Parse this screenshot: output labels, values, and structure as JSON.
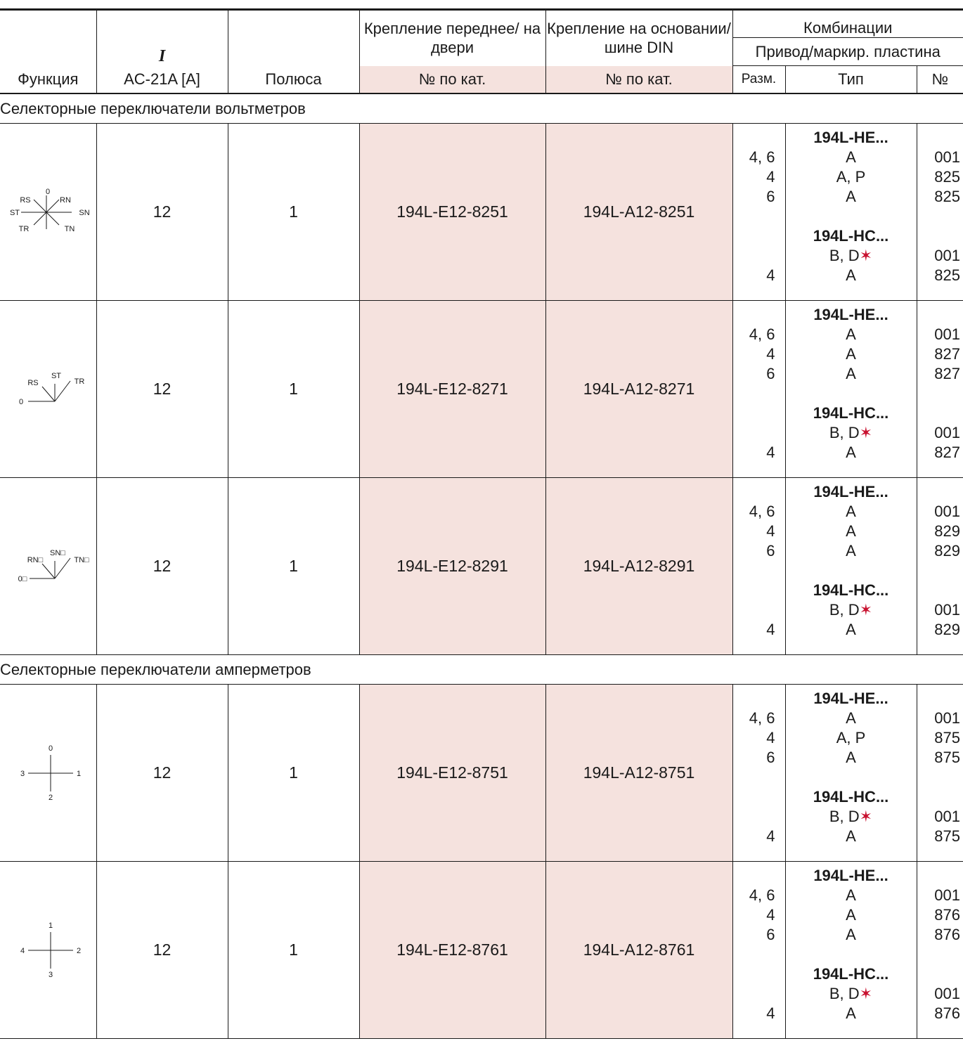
{
  "header": {
    "function": "Функция",
    "current_symbol": "I",
    "current": "AC-21A [A]",
    "poles": "Полюса",
    "front_mount": "Крепление переднее/ на двери",
    "base_mount": "Крепление на основании/шине DIN",
    "combinations": "Комбинации",
    "drive_plate": "Привод/маркир. пластина",
    "cat_no_front": "№ по кат.",
    "cat_no_base": "№ по кат.",
    "size": "Разм.",
    "type": "Тип",
    "num": "№"
  },
  "sections": [
    {
      "title": "Селекторные переключатели вольтметров",
      "rows": [
        {
          "diagram_labels": [
            "RS",
            "0",
            "RN",
            "ST",
            "SN",
            "TR",
            "TN"
          ],
          "current": "12",
          "poles": "1",
          "front": "194L-E12-8251",
          "base": "194L-A12-8251",
          "size": [
            "",
            "4, 6",
            "4",
            "6",
            "",
            "",
            "",
            "4"
          ],
          "type": [
            "194L-HE...",
            "A",
            "A, P",
            "A",
            "",
            "194L-HC...",
            "B, D",
            "A"
          ],
          "num": [
            "",
            "001",
            "825",
            "825",
            "",
            "",
            "001",
            "825"
          ]
        },
        {
          "diagram_labels": [
            "RS",
            "ST",
            "TR",
            "0"
          ],
          "current": "12",
          "poles": "1",
          "front": "194L-E12-8271",
          "base": "194L-A12-8271",
          "size": [
            "",
            "4, 6",
            "4",
            "6",
            "",
            "",
            "",
            "4"
          ],
          "type": [
            "194L-HE...",
            "A",
            "A",
            "A",
            "",
            "194L-HC...",
            "B, D",
            "A"
          ],
          "num": [
            "",
            "001",
            "827",
            "827",
            "",
            "",
            "001",
            "827"
          ]
        },
        {
          "diagram_labels": [
            "RN□",
            "SN□",
            "TN□",
            "0□"
          ],
          "current": "12",
          "poles": "1",
          "front": "194L-E12-8291",
          "base": "194L-A12-8291",
          "size": [
            "",
            "4, 6",
            "4",
            "6",
            "",
            "",
            "",
            "4"
          ],
          "type": [
            "194L-HE...",
            "A",
            "A",
            "A",
            "",
            "194L-HC...",
            "B, D",
            "A"
          ],
          "num": [
            "",
            "001",
            "829",
            "829",
            "",
            "",
            "001",
            "829"
          ]
        }
      ]
    },
    {
      "title": "Селекторные переключатели амперметров",
      "rows": [
        {
          "diagram_labels": [
            "0",
            "3",
            "1",
            "2"
          ],
          "current": "12",
          "poles": "1",
          "front": "194L-E12-8751",
          "base": "194L-A12-8751",
          "size": [
            "",
            "4, 6",
            "4",
            "6",
            "",
            "",
            "",
            "4"
          ],
          "type": [
            "194L-HE...",
            "A",
            "A, P",
            "A",
            "",
            "194L-HC...",
            "B, D",
            "A"
          ],
          "num": [
            "",
            "001",
            "875",
            "875",
            "",
            "",
            "001",
            "875"
          ]
        },
        {
          "diagram_labels": [
            "1",
            "4",
            "2",
            "3"
          ],
          "current": "12",
          "poles": "1",
          "front": "194L-E12-8761",
          "base": "194L-A12-8761",
          "size": [
            "",
            "4, 6",
            "4",
            "6",
            "",
            "",
            "",
            "4"
          ],
          "type": [
            "194L-HE...",
            "A",
            "A",
            "A",
            "",
            "194L-HC...",
            "B, D",
            "A"
          ],
          "num": [
            "",
            "001",
            "876",
            "876",
            "",
            "",
            "001",
            "876"
          ]
        }
      ]
    }
  ],
  "footnote_marker": "✶",
  "colors": {
    "pink": "#f5e2de",
    "star": "#c8102e"
  }
}
